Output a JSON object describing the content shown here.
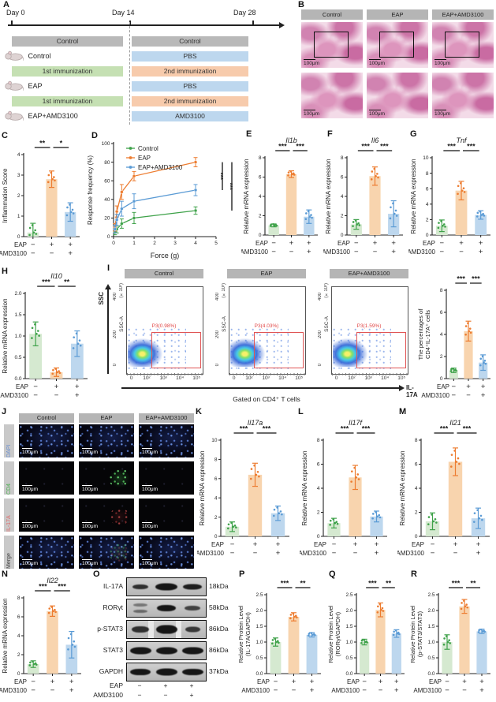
{
  "letters": {
    "A": "A",
    "B": "B",
    "C": "C",
    "D": "D",
    "E": "E",
    "F": "F",
    "G": "G",
    "H": "H",
    "I": "I",
    "J": "J",
    "K": "K",
    "L": "L",
    "M": "M",
    "N": "N",
    "O": "O",
    "P": "P",
    "Q": "Q",
    "R": "R"
  },
  "colors": {
    "green": "#3fa24a",
    "green_fill": "#d5e9d0",
    "orange": "#ed7d31",
    "orange_fill": "#f8d4ae",
    "blue": "#5b9bd5",
    "blue_fill": "#bdd7ee",
    "gate_red": "#e05555"
  },
  "groups": {
    "names": [
      "Control",
      "EAP",
      "EAP+AMD3100"
    ],
    "axis_rows": [
      {
        "label": "EAP",
        "symbols": [
          "−",
          "+",
          "+"
        ]
      },
      {
        "label": "AMD3100",
        "symbols": [
          "−",
          "−",
          "+"
        ]
      }
    ]
  },
  "panelA": {
    "days": [
      "Day 0",
      "Day 14",
      "Day 28"
    ],
    "rows": [
      {
        "mouse": "Control",
        "left": "Control",
        "right_top": "Control",
        "right_bottom": "PBS"
      },
      {
        "mouse": "EAP",
        "left": "1st immunization",
        "right_top": "2nd immunization",
        "right_bottom": "PBS"
      },
      {
        "mouse": "EAP+AMD3100",
        "left": "1st immunization",
        "right_top": "2nd immunization",
        "right_bottom": "AMD3100"
      }
    ]
  },
  "panelB": {
    "headers": [
      "Control",
      "EAP",
      "EAP+AMD3100"
    ],
    "scale": "100μm"
  },
  "panelI": {
    "plots": [
      {
        "header": "Control",
        "gate": "P3(0.98%)"
      },
      {
        "header": "EAP",
        "gate": "P3(4.03%)"
      },
      {
        "header": "EAP+AMD3100",
        "gate": "P3(1.59%)"
      }
    ],
    "y_axis_label": "SSC-A",
    "y_multiplier": "(×10³)",
    "y_ticks": [
      "0",
      "200",
      "400"
    ],
    "x_ticks": [
      "0",
      "10²",
      "10³",
      "10⁴",
      "10⁵"
    ],
    "big_y_axis": "SSC",
    "big_x_axis": "IL-17A",
    "caption": "Gated on CD4⁺ T cells"
  },
  "panelJ": {
    "col_headers": [
      "Control",
      "EAP",
      "EAP+AMD3100"
    ],
    "row_labels": [
      {
        "text": "DAPI",
        "color": "#6a8fd0"
      },
      {
        "text": "CD4",
        "color": "#4caf50"
      },
      {
        "text": "IL-17A",
        "color": "#e06666"
      },
      {
        "text": "Merge",
        "color": "#444444"
      }
    ],
    "scale": "100μm"
  },
  "panelO": {
    "rows": [
      {
        "protein": "IL-17A",
        "kda": "18kDa"
      },
      {
        "protein": "RORγt",
        "kda": "58kDa"
      },
      {
        "protein": "p-STAT3",
        "kda": "86kDa"
      },
      {
        "protein": "STAT3",
        "kda": "86kDa"
      },
      {
        "protein": "GAPDH",
        "kda": "37kDa"
      }
    ]
  },
  "chart_data": [
    {
      "id": "C",
      "type": "bar",
      "title": "",
      "ylabel": "Inflammation Score",
      "ylim": [
        0,
        4
      ],
      "yticks": [
        0,
        1,
        2,
        3,
        4
      ],
      "categories": [
        "Control",
        "EAP",
        "EAP+AMD3100"
      ],
      "values": [
        0.2,
        2.8,
        1.2
      ],
      "errors": [
        0.45,
        0.4,
        0.45
      ],
      "sig": [
        "**",
        "*"
      ]
    },
    {
      "id": "D",
      "type": "line",
      "xlabel": "Force (g)",
      "ylabel": "Response frequency (%)",
      "xlim": [
        0,
        5
      ],
      "xticks": [
        0,
        1,
        2,
        3,
        4,
        5
      ],
      "ylim": [
        0,
        100
      ],
      "yticks": [
        0,
        20,
        40,
        60,
        80,
        100
      ],
      "x": [
        0.07,
        0.16,
        0.4,
        1,
        4
      ],
      "series": [
        {
          "name": "Control",
          "color": "green",
          "values": [
            5,
            8,
            14,
            20,
            28
          ],
          "errors": [
            3,
            4,
            5,
            6,
            4
          ]
        },
        {
          "name": "EAP",
          "color": "orange",
          "values": [
            10,
            27,
            48,
            65,
            80
          ],
          "errors": [
            4,
            6,
            8,
            5,
            5
          ]
        },
        {
          "name": "EAP+AMD3100",
          "color": "blue",
          "values": [
            8,
            18,
            30,
            38,
            50
          ],
          "errors": [
            4,
            6,
            8,
            8,
            6
          ]
        }
      ],
      "sig": [
        "***",
        "***"
      ],
      "legend_position": "top-left"
    },
    {
      "id": "E",
      "type": "bar",
      "title": "Il1b",
      "ylabel": "Relative mRNA expression",
      "ylim": [
        0,
        8
      ],
      "yticks": [
        0,
        2,
        4,
        6,
        8
      ],
      "categories": [
        "Control",
        "EAP",
        "EAP+AMD3100"
      ],
      "values": [
        1.0,
        6.3,
        1.9
      ],
      "errors": [
        0.15,
        0.35,
        0.7
      ],
      "sig": [
        "***",
        "***"
      ]
    },
    {
      "id": "F",
      "type": "bar",
      "title": "Il6",
      "ylabel": "Relative mRNA expression",
      "ylim": [
        0,
        8
      ],
      "yticks": [
        0,
        2,
        4,
        6,
        8
      ],
      "categories": [
        "Control",
        "EAP",
        "EAP+AMD3100"
      ],
      "values": [
        1.1,
        6.1,
        2.2
      ],
      "errors": [
        0.5,
        0.95,
        1.35
      ],
      "sig": [
        "***",
        "***"
      ]
    },
    {
      "id": "G",
      "type": "bar",
      "title": "Tnf",
      "ylabel": "Relative mRNA expression",
      "ylim": [
        0,
        10
      ],
      "yticks": [
        0,
        2,
        4,
        6,
        8,
        10
      ],
      "categories": [
        "Control",
        "EAP",
        "EAP+AMD3100"
      ],
      "values": [
        1.2,
        5.75,
        2.6
      ],
      "errors": [
        0.75,
        1.2,
        0.55
      ],
      "sig": [
        "***",
        "***"
      ]
    },
    {
      "id": "H",
      "type": "bar",
      "title": "Il10",
      "ylabel": "Relative mRNA expression",
      "ylim": [
        0,
        2
      ],
      "yticks": [
        0,
        0.5,
        1,
        1.5,
        2
      ],
      "ydec": 1,
      "categories": [
        "Control",
        "EAP",
        "EAP+AMD3100"
      ],
      "values": [
        1.05,
        0.15,
        0.82
      ],
      "errors": [
        0.28,
        0.1,
        0.3
      ],
      "sig": [
        "***",
        "**"
      ]
    },
    {
      "id": "I",
      "type": "bar",
      "title": "",
      "ylabel": "The percentages of",
      "ylabel2": "CD4⁺IL-17A⁺ cells",
      "ylim": [
        0,
        8
      ],
      "yticks": [
        0,
        2,
        4,
        6,
        8
      ],
      "categories": [
        "Control",
        "EAP",
        "EAP+AMD3100"
      ],
      "values": [
        0.75,
        4.3,
        1.45
      ],
      "errors": [
        0.2,
        0.9,
        0.7
      ],
      "sig": [
        "***",
        "***"
      ]
    },
    {
      "id": "K",
      "type": "bar",
      "title": "Il17a",
      "ylabel": "Relative mRNA expression",
      "ylim": [
        0,
        10
      ],
      "yticks": [
        0,
        2,
        4,
        6,
        8,
        10
      ],
      "categories": [
        "Control",
        "EAP",
        "EAP+AMD3100"
      ],
      "values": [
        1.0,
        6.4,
        2.4
      ],
      "errors": [
        0.5,
        1.2,
        0.75
      ],
      "sig": [
        "***",
        "***"
      ]
    },
    {
      "id": "L",
      "type": "bar",
      "title": "Il17f",
      "ylabel": "Relative mRNA expression",
      "ylim": [
        0,
        8
      ],
      "yticks": [
        0,
        2,
        4,
        6,
        8
      ],
      "categories": [
        "Control",
        "EAP",
        "EAP+AMD3100"
      ],
      "values": [
        1.1,
        4.9,
        1.65
      ],
      "errors": [
        0.4,
        1.0,
        0.45
      ],
      "sig": [
        "***",
        "***"
      ]
    },
    {
      "id": "M",
      "type": "bar",
      "title": "Il21",
      "ylabel": "Relative mRNA expression",
      "ylim": [
        0,
        8
      ],
      "yticks": [
        0,
        2,
        4,
        6,
        8
      ],
      "categories": [
        "Control",
        "EAP",
        "EAP+AMD3100"
      ],
      "values": [
        1.25,
        6.2,
        1.5
      ],
      "errors": [
        0.7,
        1.15,
        0.85
      ],
      "sig": [
        "***",
        "***"
      ]
    },
    {
      "id": "N",
      "type": "bar",
      "title": "Il22",
      "ylabel": "Relative mRNA expression",
      "ylim": [
        0,
        8
      ],
      "yticks": [
        0,
        2,
        4,
        6,
        8
      ],
      "categories": [
        "Control",
        "EAP",
        "EAP+AMD3100"
      ],
      "values": [
        1.0,
        6.6,
        3.05
      ],
      "errors": [
        0.35,
        0.55,
        1.4
      ],
      "sig": [
        "***",
        "***"
      ]
    },
    {
      "id": "P",
      "type": "bar",
      "title": "",
      "ylabel": "Relative Protein Level",
      "ylabel2": "(IL-17A/GAPDH)",
      "ylim": [
        0,
        2.5
      ],
      "yticks": [
        0,
        0.5,
        1,
        1.5,
        2,
        2.5
      ],
      "ydec": 1,
      "categories": [
        "Control",
        "EAP",
        "EAP+AMD3100"
      ],
      "values": [
        1.0,
        1.8,
        1.23
      ],
      "errors": [
        0.13,
        0.13,
        0.07
      ],
      "sig": [
        "***",
        "**"
      ]
    },
    {
      "id": "Q",
      "type": "bar",
      "title": "",
      "ylabel": "Relative Protein Level",
      "ylabel2": "(RORγt/GAPDH)",
      "ylim": [
        0,
        2.5
      ],
      "yticks": [
        0,
        0.5,
        1,
        1.5,
        2,
        2.5
      ],
      "ydec": 1,
      "categories": [
        "Control",
        "EAP",
        "EAP+AMD3100"
      ],
      "values": [
        1.0,
        2.02,
        1.27
      ],
      "errors": [
        0.09,
        0.22,
        0.12
      ],
      "sig": [
        "***",
        "**"
      ]
    },
    {
      "id": "R",
      "type": "bar",
      "title": "",
      "ylabel": "Relative Protein Level",
      "ylabel2": "(p-STAT3/STAT3)",
      "ylim": [
        0,
        2.5
      ],
      "yticks": [
        0,
        0.5,
        1,
        1.5,
        2,
        2.5
      ],
      "ydec": 1,
      "categories": [
        "Control",
        "EAP",
        "EAP+AMD3100"
      ],
      "values": [
        1.0,
        2.13,
        1.34
      ],
      "errors": [
        0.23,
        0.22,
        0.07
      ],
      "sig": [
        "***",
        "**"
      ]
    }
  ]
}
